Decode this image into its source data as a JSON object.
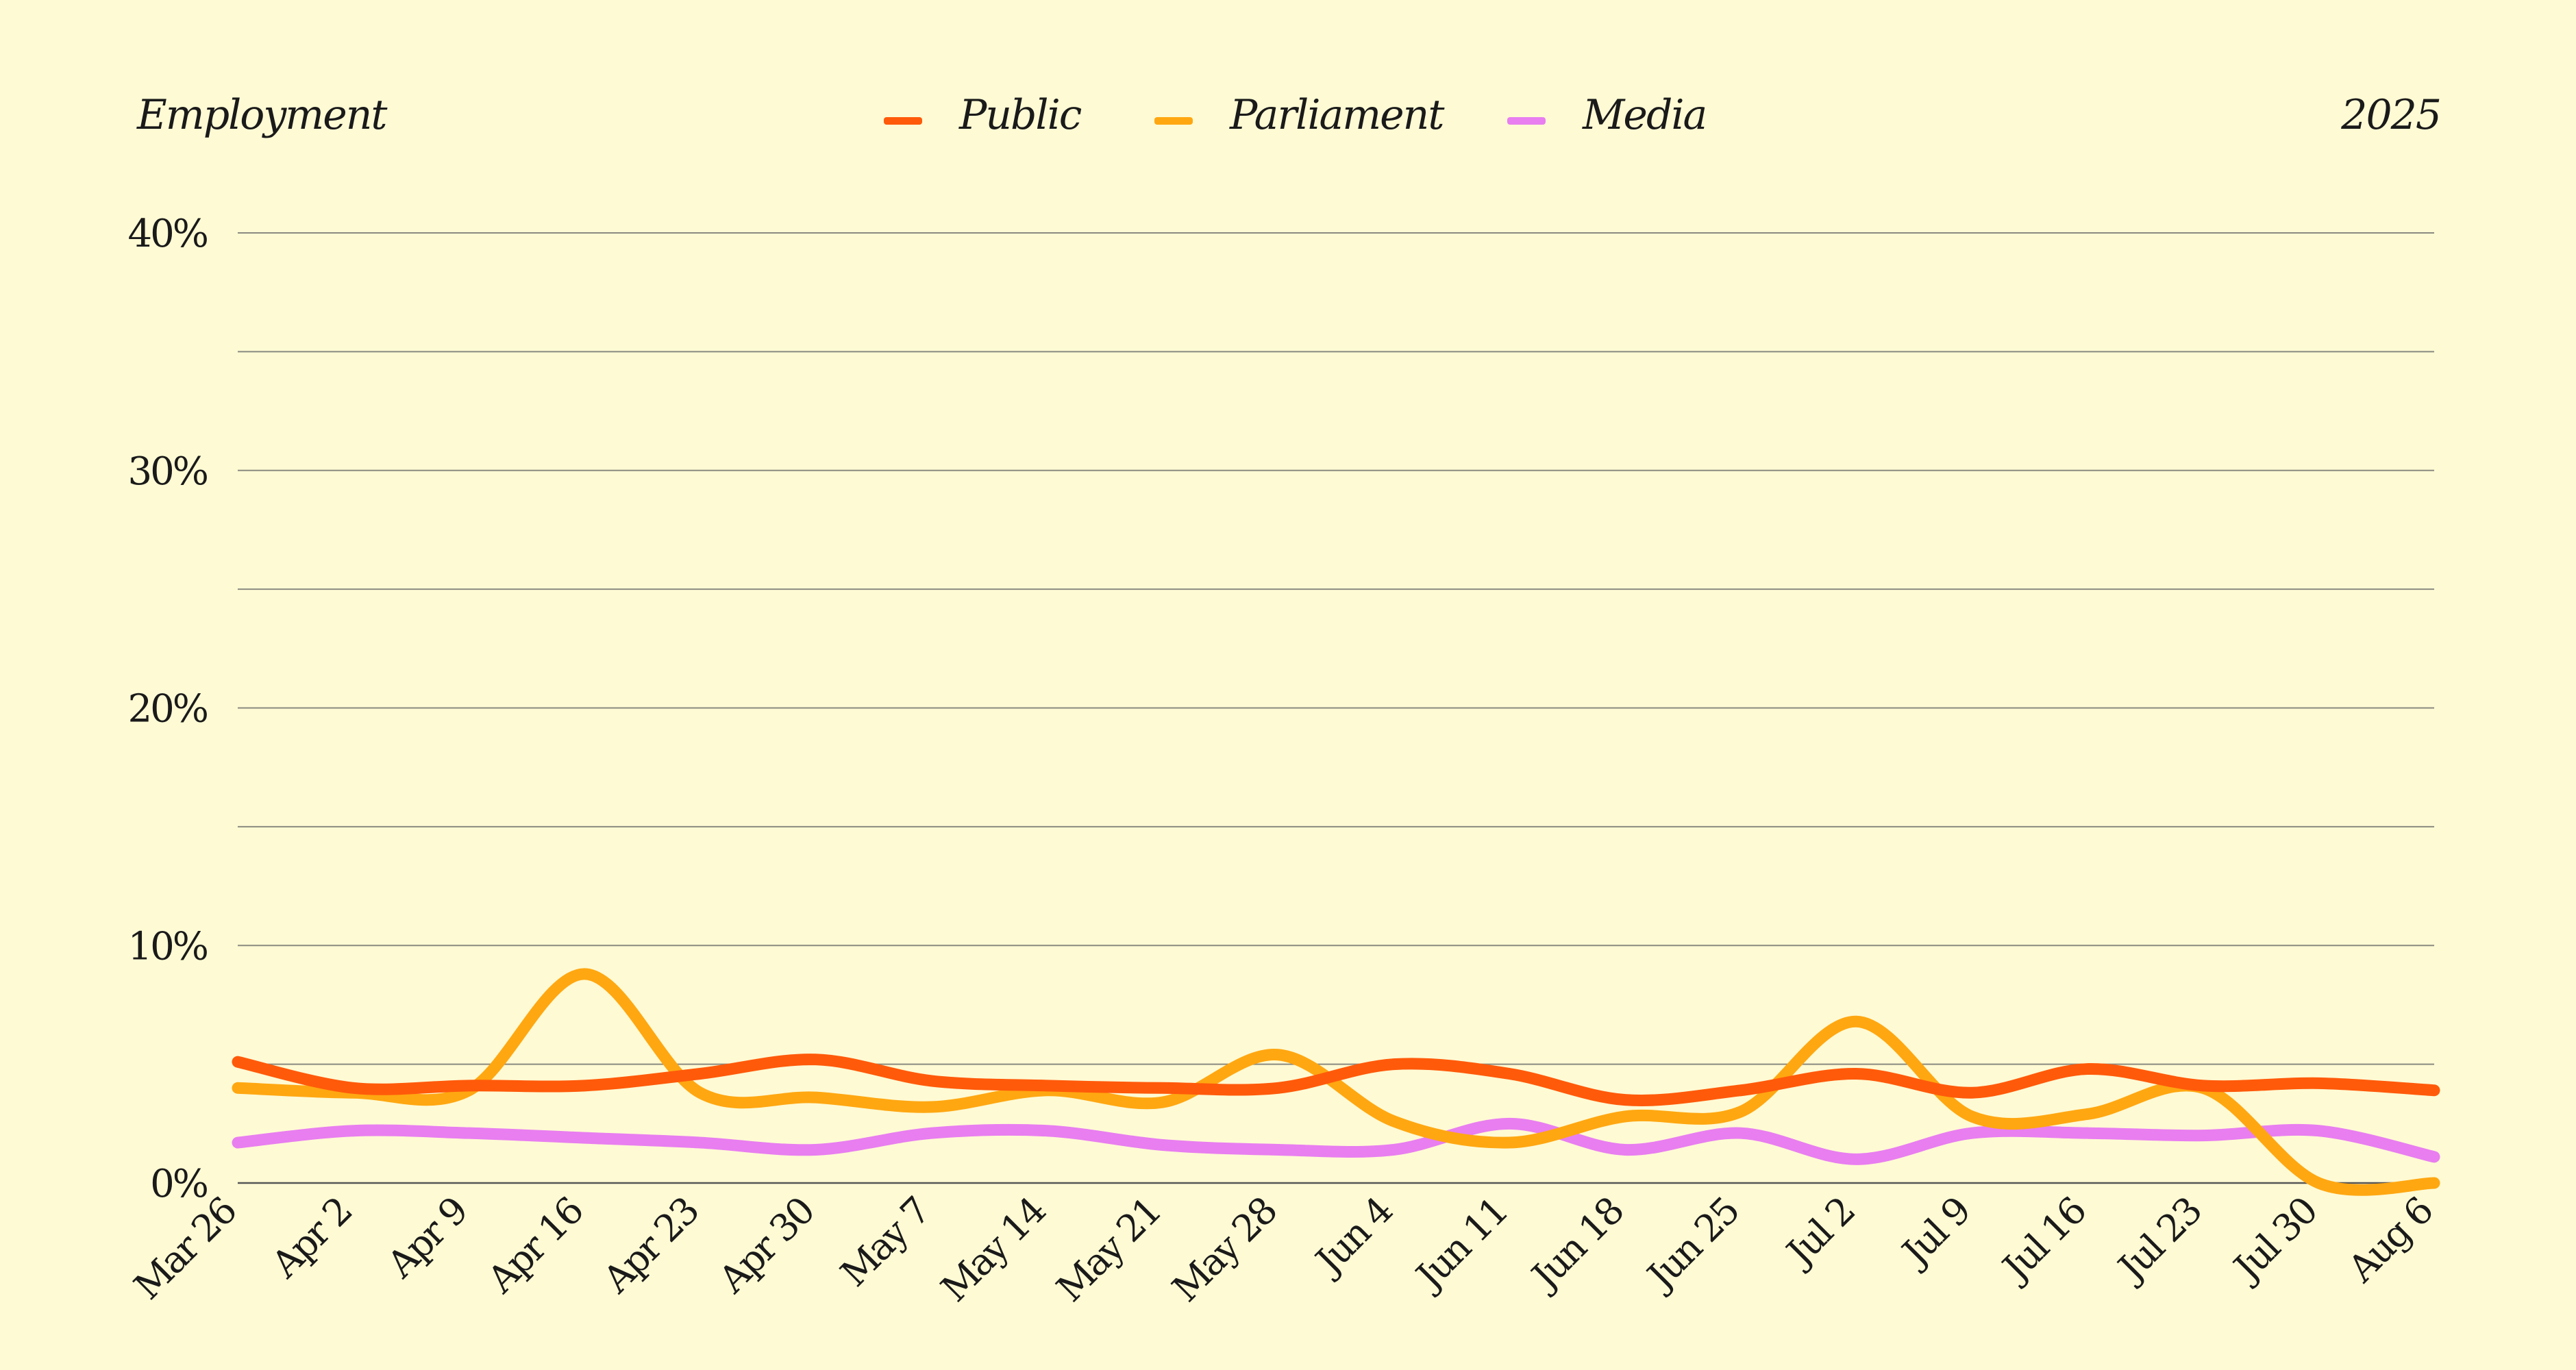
{
  "chart_data": {
    "type": "line",
    "title": "Employment",
    "period_label": "2025",
    "x": [
      "Mar 26",
      "Apr 2",
      "Apr 9",
      "Apr 16",
      "Apr 23",
      "Apr 30",
      "May 7",
      "May 14",
      "May 21",
      "May 28",
      "Jun 4",
      "Jun 11",
      "Jun 18",
      "Jun 25",
      "Jul 2",
      "Jul 9",
      "Jul 16",
      "Jul 23",
      "Jul 30",
      "Aug 6"
    ],
    "yticks": [
      "0%",
      "10%",
      "20%",
      "30%",
      "40%"
    ],
    "ylim": [
      0,
      40
    ],
    "grid": true,
    "legend_position": "top-center",
    "series": [
      {
        "name": "Public",
        "color": "#ff5a0a",
        "values": [
          5.1,
          4.0,
          4.1,
          4.1,
          4.6,
          5.2,
          4.3,
          4.1,
          4.0,
          4.0,
          5.0,
          4.6,
          3.5,
          3.9,
          4.6,
          3.8,
          4.8,
          4.1,
          4.2,
          3.9
        ]
      },
      {
        "name": "Parliament",
        "color": "#ffa711",
        "values": [
          4.0,
          3.8,
          3.9,
          8.8,
          3.8,
          3.6,
          3.2,
          3.9,
          3.4,
          5.4,
          2.6,
          1.7,
          2.8,
          3.0,
          6.8,
          2.8,
          2.9,
          4.0,
          0.0,
          0.0
        ]
      },
      {
        "name": "Media",
        "color": "#e87ef0",
        "values": [
          1.7,
          2.2,
          2.1,
          1.9,
          1.7,
          1.4,
          2.1,
          2.2,
          1.6,
          1.4,
          1.4,
          2.5,
          1.4,
          2.1,
          1.0,
          2.1,
          2.1,
          2.0,
          2.2,
          1.1
        ]
      }
    ]
  }
}
